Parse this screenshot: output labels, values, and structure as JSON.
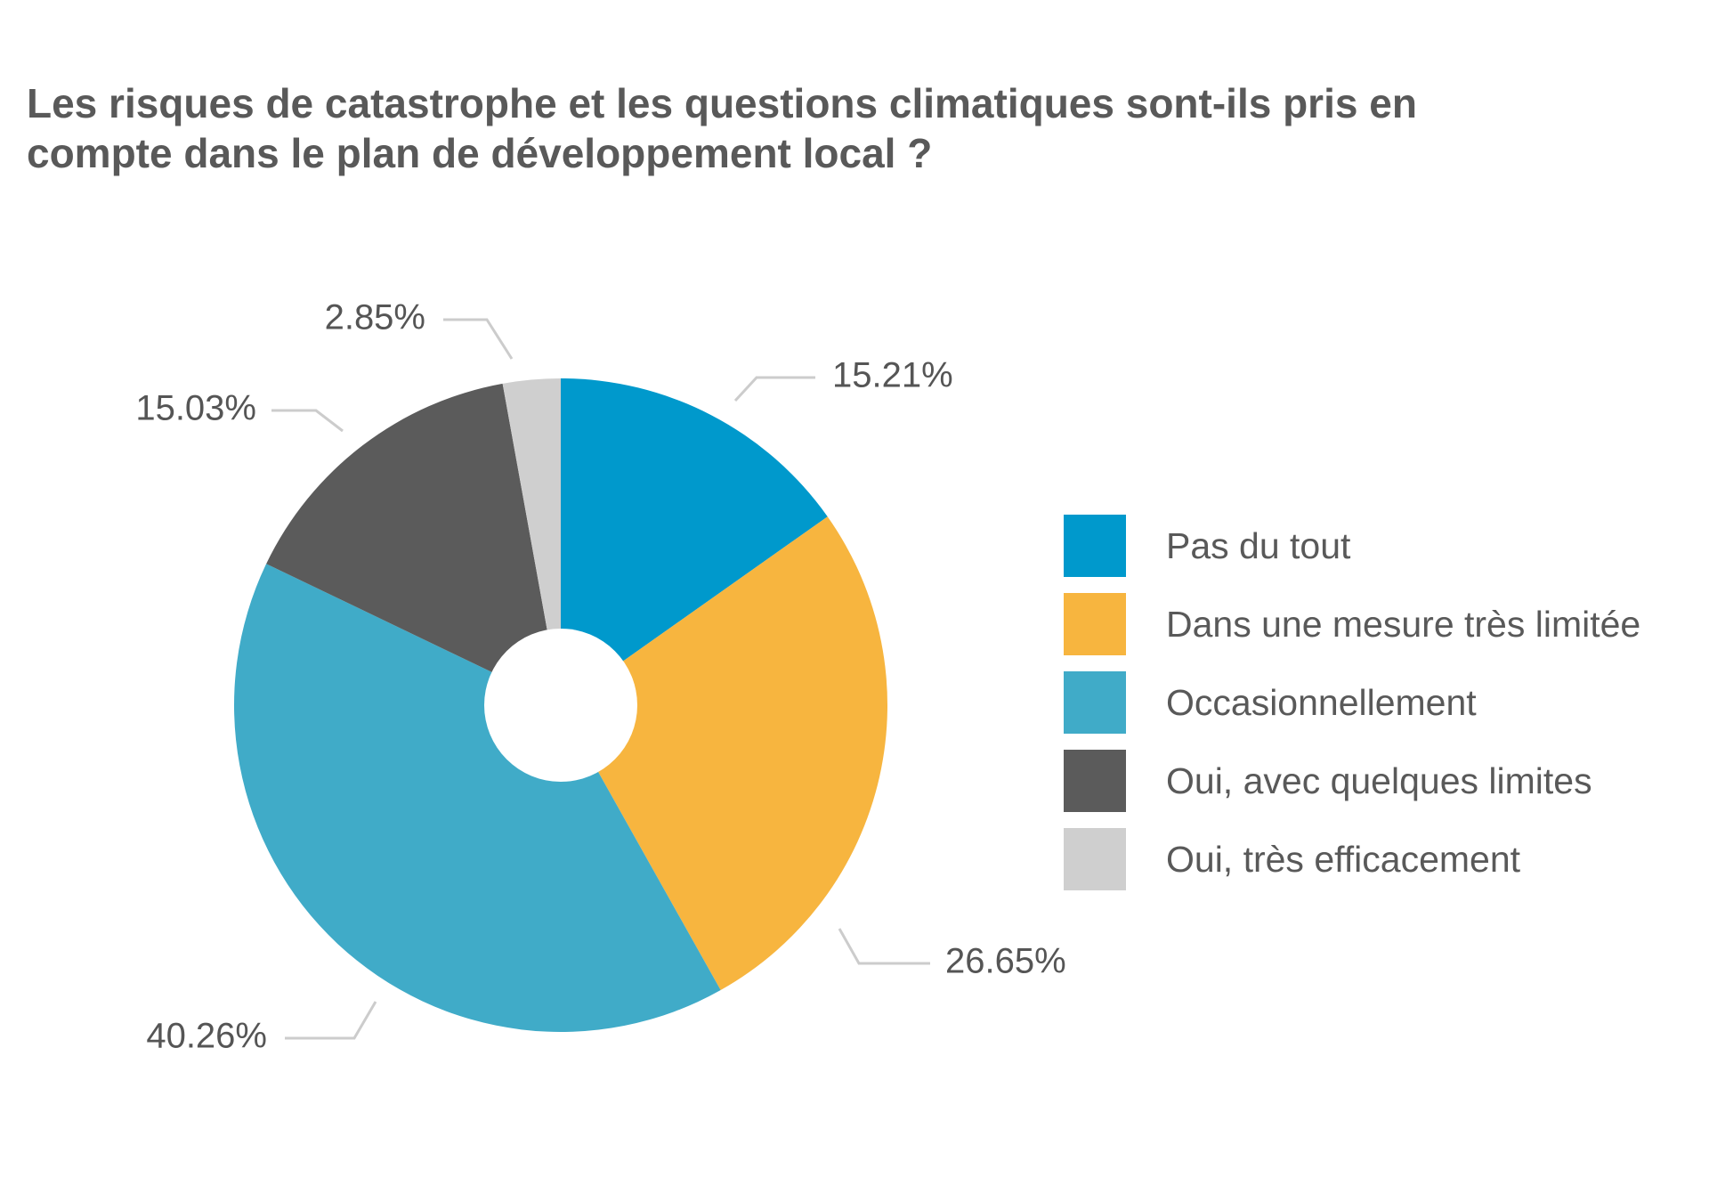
{
  "chart_data": {
    "type": "pie",
    "title_lines": [
      "Les risques de catastrophe et les questions climatiques sont-ils pris en",
      "compte dans le plan de développement local ?"
    ],
    "slices": [
      {
        "label": "Pas du tout",
        "value": 15.21,
        "value_label": "15.21%",
        "color": "#0099cc"
      },
      {
        "label": "Dans une mesure très limitée",
        "value": 26.65,
        "value_label": "26.65%",
        "color": "#f7b53f"
      },
      {
        "label": "Occasionnellement",
        "value": 40.26,
        "value_label": "40.26%",
        "color": "#40abc8"
      },
      {
        "label": "Oui, avec quelques limites",
        "value": 15.03,
        "value_label": "15.03%",
        "color": "#5b5b5b"
      },
      {
        "label": "Oui, très efficacement",
        "value": 2.85,
        "value_label": "2.85%",
        "color": "#cfcfcf"
      }
    ],
    "legend_position": "right"
  }
}
